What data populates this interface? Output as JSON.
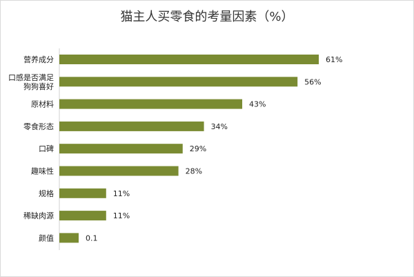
{
  "chart_data": {
    "type": "bar",
    "orientation": "horizontal",
    "title": "猫主人买零食的考量因素（%）",
    "categories": [
      "营养成分",
      "口感是否满足狗狗喜好",
      "原材料",
      "零食形态",
      "口碑",
      "趣味性",
      "规格",
      "稀缺肉源",
      "颜值"
    ],
    "category_lines": [
      [
        "营养成分"
      ],
      [
        "口感是否满足",
        "狗狗喜好"
      ],
      [
        "原材料"
      ],
      [
        "零食形态"
      ],
      [
        "口碑"
      ],
      [
        "趣味性"
      ],
      [
        "规格"
      ],
      [
        "稀缺肉源"
      ],
      [
        "颜值"
      ]
    ],
    "values": [
      61,
      56,
      43,
      34,
      29,
      28,
      11,
      11,
      0.1
    ],
    "value_labels": [
      "61%",
      "56%",
      "43%",
      "34%",
      "29%",
      "28%",
      "11%",
      "11%",
      "0.1"
    ],
    "bar_color": "#7a8b32",
    "xlim": [
      0,
      61
    ],
    "xlabel": "",
    "ylabel": "",
    "grid": false,
    "legend": "none"
  }
}
